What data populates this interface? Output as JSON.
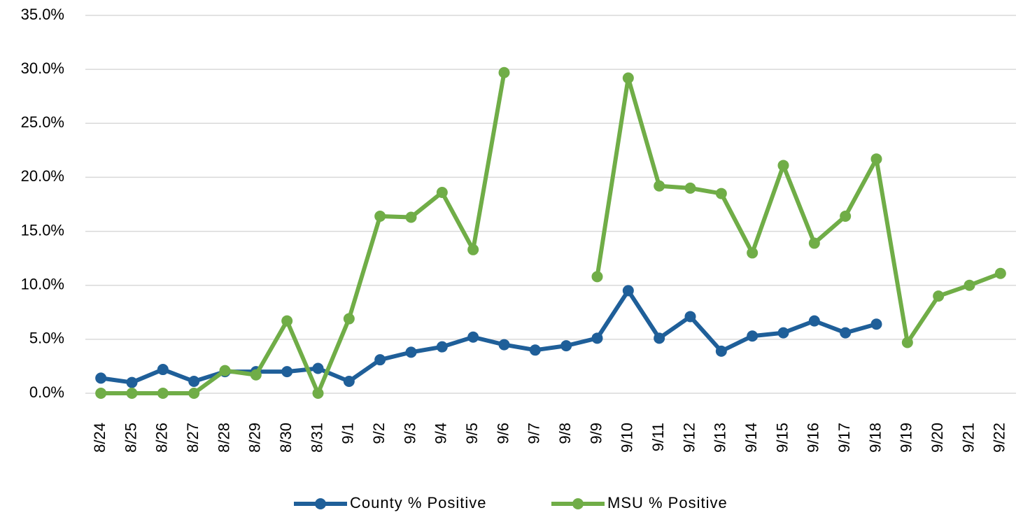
{
  "chart_data": {
    "type": "line",
    "categories": [
      "8/24",
      "8/25",
      "8/26",
      "8/27",
      "8/28",
      "8/29",
      "8/30",
      "8/31",
      "9/1",
      "9/2",
      "9/3",
      "9/4",
      "9/5",
      "9/6",
      "9/7",
      "9/8",
      "9/9",
      "9/10",
      "9/11",
      "9/12",
      "9/13",
      "9/14",
      "9/15",
      "9/16",
      "9/17",
      "9/18",
      "9/19",
      "9/20",
      "9/21",
      "9/22"
    ],
    "series": [
      {
        "name": "County % Positive",
        "color": "#1f5f99",
        "values": [
          1.4,
          1.0,
          2.2,
          1.1,
          2.0,
          2.0,
          2.0,
          2.3,
          1.1,
          3.1,
          3.8,
          4.3,
          5.2,
          4.5,
          4.0,
          4.4,
          5.1,
          9.5,
          5.1,
          7.1,
          3.9,
          5.3,
          5.6,
          6.7,
          5.6,
          6.4,
          null,
          null,
          null,
          null
        ]
      },
      {
        "name": "MSU % Positive",
        "color": "#70ad47",
        "values": [
          0,
          0,
          0,
          0,
          2.1,
          1.7,
          6.7,
          0,
          6.9,
          16.4,
          16.3,
          18.6,
          13.3,
          29.7,
          null,
          null,
          10.8,
          29.2,
          19.2,
          19.0,
          18.5,
          13.0,
          21.1,
          13.9,
          16.4,
          21.7,
          4.7,
          9.0,
          10.0,
          11.1
        ]
      }
    ],
    "ylim": [
      0,
      35
    ],
    "yticks": [
      {
        "value": 0,
        "label": "0.0%"
      },
      {
        "value": 5,
        "label": "5.0%"
      },
      {
        "value": 10,
        "label": "10.0%"
      },
      {
        "value": 15,
        "label": "15.0%"
      },
      {
        "value": 20,
        "label": "20.0%"
      },
      {
        "value": 25,
        "label": "25.0%"
      },
      {
        "value": 30,
        "label": "30.0%"
      },
      {
        "value": 35,
        "label": "35.0%"
      }
    ],
    "grid": true,
    "legend": "bottom"
  }
}
